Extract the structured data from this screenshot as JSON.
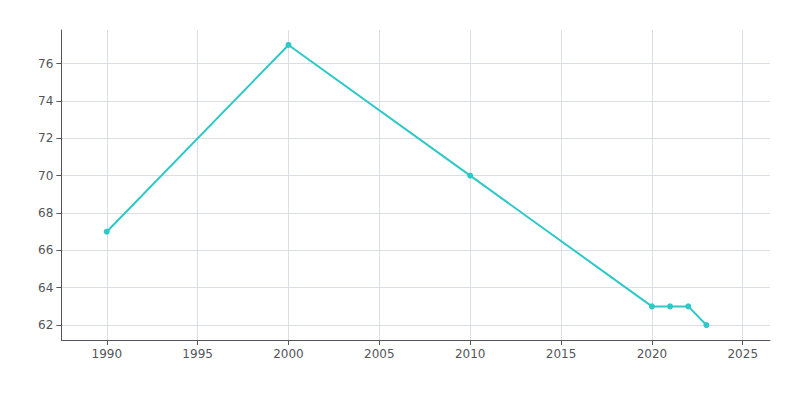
{
  "chart_data": {
    "type": "line",
    "x": [
      1990,
      2000,
      2010,
      2020,
      2021,
      2022,
      2023
    ],
    "values": [
      67,
      77,
      70,
      63,
      63,
      63,
      62
    ],
    "color": "#2ec8c8",
    "marker": "circle",
    "xlim": [
      1987.5,
      2026.5
    ],
    "xticks": [
      1990,
      1995,
      2000,
      2005,
      2010,
      2015,
      2020,
      2025
    ],
    "ylim": [
      61.2,
      77.8
    ],
    "yticks": [
      62,
      64,
      66,
      68,
      70,
      72,
      74,
      76
    ],
    "grid": true
  }
}
